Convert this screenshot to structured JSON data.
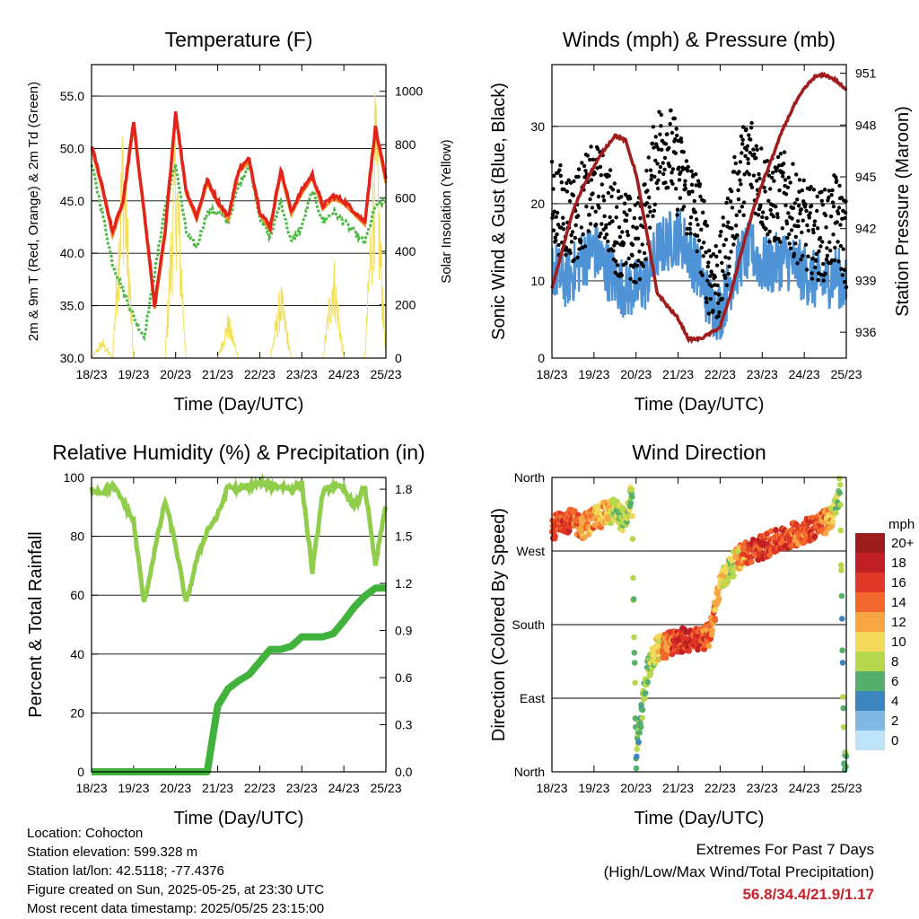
{
  "x_ticks": [
    "18/23",
    "19/23",
    "20/23",
    "21/23",
    "22/23",
    "23/23",
    "24/23",
    "25/23"
  ],
  "colors": {
    "temp2m": "#e3241b",
    "temp9m": "#f28a1e",
    "dewpoint": "#4cb944",
    "solar": "#f3df54",
    "wind": "#4d93d6",
    "gust": "#000000",
    "pressure": "#a11d1d",
    "rh": "#8fcd4b",
    "precip": "#41b23c"
  },
  "chart_data": [
    {
      "type": "line",
      "title": "Temperature (F)",
      "xlabel": "Time (Day/UTC)",
      "ylabel": "2m & 9m T (Red, Orange) & 2m Td (Green)",
      "ylabel_right": "Solar Insolation (Yellow)",
      "ylim": [
        30,
        58
      ],
      "ylim_right": [
        0,
        1100
      ],
      "yticks": [
        "30.0",
        "35.0",
        "40.0",
        "45.0",
        "50.0",
        "55.0"
      ],
      "yticks_right": [
        "0",
        "200",
        "400",
        "600",
        "800",
        "1000"
      ],
      "x": [
        0,
        0.25,
        0.5,
        0.75,
        1.0,
        1.25,
        1.5,
        1.75,
        2.0,
        2.25,
        2.5,
        2.75,
        3.0,
        3.25,
        3.5,
        3.75,
        4.0,
        4.25,
        4.5,
        4.75,
        5.0,
        5.25,
        5.5,
        5.75,
        6.0,
        6.25,
        6.5,
        6.75,
        7.0
      ],
      "series": [
        {
          "key": "temp2m",
          "values": [
            50.3,
            46.5,
            42.0,
            45.0,
            52.5,
            44.0,
            35.0,
            42.0,
            53.5,
            46.0,
            43.5,
            47.0,
            45.0,
            43.5,
            48.0,
            49.0,
            44.0,
            42.5,
            48.0,
            44.0,
            46.0,
            47.5,
            44.5,
            45.5,
            45.0,
            44.0,
            43.0,
            52.0,
            47.0
          ]
        },
        {
          "key": "dewpoint",
          "values": [
            48.5,
            44.0,
            39.0,
            36.5,
            34.0,
            32.0,
            38.0,
            44.5,
            48.5,
            42.0,
            40.5,
            44.0,
            44.0,
            43.0,
            46.5,
            48.5,
            43.5,
            41.5,
            45.0,
            41.0,
            42.5,
            46.0,
            43.0,
            44.0,
            43.0,
            42.0,
            41.0,
            44.5,
            45.0
          ]
        },
        {
          "key": "solar",
          "values": [
            0,
            80,
            0,
            1000,
            0,
            0,
            0,
            0,
            960,
            0,
            0,
            0,
            0,
            180,
            0,
            0,
            0,
            0,
            300,
            0,
            0,
            0,
            0,
            420,
            0,
            0,
            0,
            1050,
            0
          ]
        }
      ]
    },
    {
      "type": "scatter",
      "title": "Winds (mph) & Pressure (mb)",
      "xlabel": "Time (Day/UTC)",
      "ylabel": "Sonic Wind & Gust (Blue, Black)",
      "ylabel_right": "Station Pressure (Maroon)",
      "ylim": [
        0,
        38
      ],
      "ylim_right": [
        934.5,
        951.5
      ],
      "yticks": [
        "0",
        "10",
        "20",
        "30"
      ],
      "yticks_right": [
        "936",
        "939",
        "942",
        "945",
        "948",
        "951"
      ],
      "x": [
        0,
        0.25,
        0.5,
        0.75,
        1.0,
        1.25,
        1.5,
        1.75,
        2.0,
        2.25,
        2.5,
        2.75,
        3.0,
        3.25,
        3.5,
        3.75,
        4.0,
        4.25,
        4.5,
        4.75,
        5.0,
        5.25,
        5.5,
        5.75,
        6.0,
        6.25,
        6.5,
        6.75,
        7.0
      ],
      "series": [
        {
          "key": "wind",
          "values": [
            12,
            10,
            11,
            13,
            14,
            12,
            10,
            9,
            9,
            10,
            14,
            15,
            16,
            14,
            11,
            7,
            6,
            10,
            13,
            14,
            12,
            12,
            13,
            12,
            11,
            10,
            10,
            11,
            9
          ]
        },
        {
          "key": "gust",
          "values": [
            20,
            19,
            18,
            20,
            22,
            21,
            17,
            16,
            14,
            19,
            27,
            28,
            24,
            21,
            18,
            11,
            10,
            18,
            24,
            26,
            22,
            20,
            21,
            19,
            17,
            16,
            16,
            18,
            15
          ]
        },
        {
          "key": "pressure",
          "values": [
            938.5,
            940.8,
            943.0,
            944.5,
            945.6,
            946.6,
            947.4,
            947.1,
            945.2,
            941.8,
            938.3,
            937.5,
            936.8,
            935.6,
            935.6,
            935.9,
            936.3,
            938.2,
            940.6,
            942.8,
            944.6,
            946.2,
            947.8,
            949.1,
            950.1,
            950.8,
            950.9,
            950.6,
            950.0
          ]
        }
      ]
    },
    {
      "type": "line",
      "title": "Relative Humidity (%) & Precipitation (in)",
      "xlabel": "Time (Day/UTC)",
      "ylabel": "Percent & Total Rainfall",
      "ylim": [
        0,
        100
      ],
      "ylim_right": [
        0,
        1.875
      ],
      "yticks": [
        "0",
        "20",
        "40",
        "60",
        "80",
        "100"
      ],
      "yticks_right": [
        "0.0",
        "0.3",
        "0.6",
        "0.9",
        "1.2",
        "1.5",
        "1.8"
      ],
      "x": [
        0,
        0.25,
        0.5,
        0.75,
        1.0,
        1.25,
        1.5,
        1.75,
        2.0,
        2.25,
        2.5,
        2.75,
        3.0,
        3.25,
        3.5,
        3.75,
        4.0,
        4.25,
        4.5,
        4.75,
        5.0,
        5.25,
        5.5,
        5.75,
        6.0,
        6.25,
        6.5,
        6.75,
        7.0
      ],
      "series": [
        {
          "key": "rh",
          "values": [
            96,
            95,
            97,
            92,
            85,
            57,
            75,
            92,
            77,
            57,
            72,
            82,
            87,
            97,
            96,
            97,
            98,
            97,
            97,
            96,
            98,
            68,
            95,
            97,
            96,
            90,
            97,
            70,
            91
          ]
        },
        {
          "key": "precip",
          "values": [
            0,
            0,
            0,
            0,
            0,
            0,
            0,
            0,
            0,
            0,
            0,
            0,
            0.42,
            0.53,
            0.58,
            0.62,
            0.7,
            0.78,
            0.78,
            0.8,
            0.86,
            0.86,
            0.86,
            0.88,
            0.96,
            1.05,
            1.12,
            1.17,
            1.17
          ]
        }
      ]
    },
    {
      "type": "scatter",
      "title": "Wind Direction",
      "xlabel": "Time (Day/UTC)",
      "ylabel": "Direction (Colored By Speed)",
      "ylim": [
        0,
        360
      ],
      "yticks": [
        "North",
        "East",
        "South",
        "West",
        "North"
      ],
      "legend_title": "mph",
      "legend_labels": [
        "20+",
        "18",
        "16",
        "14",
        "12",
        "10",
        "8",
        "6",
        "4",
        "2",
        "0"
      ],
      "legend_colors": [
        "#9b1c1c",
        "#c01f24",
        "#df3626",
        "#f2682c",
        "#f6a543",
        "#f3d95a",
        "#b6d84c",
        "#56b06b",
        "#3b86c0",
        "#7fb8e4",
        "#bfe3f6"
      ],
      "x": [
        0,
        0.25,
        0.5,
        0.75,
        1.0,
        1.25,
        1.5,
        1.75,
        1.9,
        2.0,
        2.1,
        2.25,
        2.5,
        2.75,
        3.0,
        3.25,
        3.5,
        3.75,
        4.0,
        4.25,
        4.5,
        4.75,
        5.0,
        5.25,
        5.5,
        5.75,
        6.0,
        6.25,
        6.5,
        6.75,
        6.85,
        6.95
      ],
      "direction": [
        295,
        310,
        305,
        300,
        310,
        315,
        320,
        305,
        345,
        15,
        60,
        120,
        150,
        155,
        160,
        162,
        160,
        168,
        230,
        250,
        265,
        270,
        275,
        280,
        285,
        290,
        295,
        300,
        305,
        320,
        350,
        10
      ],
      "speed": [
        14,
        16,
        15,
        12,
        13,
        12,
        9,
        8,
        8,
        7,
        6,
        7,
        9,
        14,
        16,
        17,
        16,
        14,
        11,
        8,
        12,
        16,
        17,
        15,
        16,
        14,
        15,
        16,
        13,
        9,
        8,
        5
      ]
    }
  ],
  "info": {
    "location": "Location: Cohocton",
    "elevation": "Station elevation: 599.328 m",
    "latlon": "Station lat/lon: 42.5118; -77.4376",
    "created": "Figure created on Sun, 2025-05-25, at 23:30 UTC",
    "recent": "Most recent data timestamp: 2025/05/25 23:15:00"
  },
  "extremes": {
    "title": "Extremes For Past 7 Days",
    "subtitle": "(High/Low/Max Wind/Total Precipitation)",
    "values": "56.8/34.4/21.9/1.17"
  }
}
